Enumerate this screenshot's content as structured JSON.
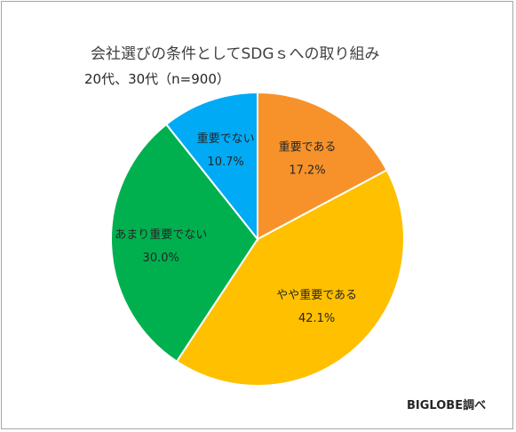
{
  "chart_data": {
    "type": "pie",
    "title": "会社選びの条件としてSDGｓへの取り組み",
    "subtitle": "20代、30代（n=900）",
    "source": "BIGLOBE調べ",
    "slices": [
      {
        "label": "重要である",
        "value": 17.2,
        "display": "17.2%",
        "color": "#F7922A"
      },
      {
        "label": "やや重要である",
        "value": 42.1,
        "display": "42.1%",
        "color": "#FFC000"
      },
      {
        "label": "あまり重要でない",
        "value": 30.0,
        "display": "30.0%",
        "color": "#00B04F"
      },
      {
        "label": "重要でない",
        "value": 10.7,
        "display": "10.7%",
        "color": "#00AAF5"
      }
    ],
    "start": "12 o'clock",
    "direction": "clockwise"
  }
}
